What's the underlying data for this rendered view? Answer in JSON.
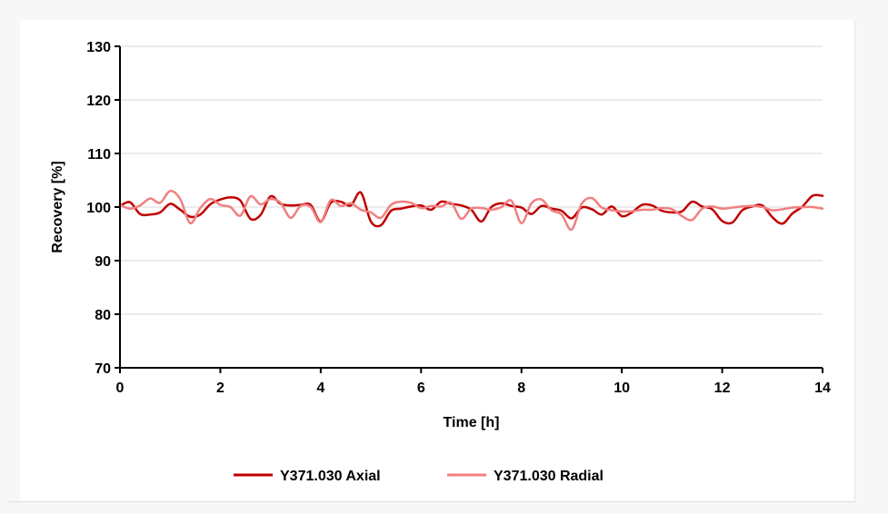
{
  "chart_data": {
    "type": "line",
    "title": "",
    "xlabel": "Time [h]",
    "ylabel": "Recovery [%]",
    "xlim": [
      0,
      14
    ],
    "ylim": [
      70,
      130
    ],
    "xticks": [
      0,
      2,
      4,
      6,
      8,
      10,
      12,
      14
    ],
    "yticks": [
      70,
      80,
      90,
      100,
      110,
      120,
      130
    ],
    "grid": "horizontal",
    "legend_position": "bottom",
    "series": [
      {
        "name": "Y371.030 Axial",
        "color": "#c00000",
        "x": [
          0,
          0.2,
          0.4,
          0.6,
          0.8,
          1.0,
          1.2,
          1.4,
          1.6,
          1.8,
          2.0,
          2.2,
          2.4,
          2.6,
          2.8,
          3.0,
          3.2,
          3.4,
          3.6,
          3.8,
          4.0,
          4.2,
          4.4,
          4.6,
          4.8,
          5.0,
          5.2,
          5.4,
          5.6,
          5.8,
          6.0,
          6.2,
          6.4,
          6.6,
          6.8,
          7.0,
          7.2,
          7.4,
          7.6,
          7.8,
          8.0,
          8.2,
          8.4,
          8.6,
          8.8,
          9.0,
          9.2,
          9.4,
          9.6,
          9.8,
          10.0,
          10.2,
          10.4,
          10.6,
          10.8,
          11.0,
          11.2,
          11.4,
          11.6,
          11.8,
          12.0,
          12.2,
          12.4,
          12.6,
          12.8,
          13.0,
          13.2,
          13.4,
          13.6,
          13.8,
          14.0
        ],
        "y": [
          100.2,
          100.9,
          98.7,
          98.6,
          99.0,
          100.6,
          99.5,
          98.2,
          98.6,
          100.5,
          101.4,
          101.8,
          101.2,
          97.8,
          98.5,
          102.0,
          100.6,
          100.3,
          100.4,
          100.4,
          97.3,
          100.8,
          101.0,
          100.3,
          102.7,
          97.3,
          96.6,
          99.3,
          99.7,
          100.1,
          100.3,
          99.5,
          101.0,
          100.6,
          100.3,
          99.5,
          97.3,
          100.0,
          100.7,
          100.2,
          99.9,
          98.7,
          100.2,
          99.7,
          99.3,
          97.9,
          99.9,
          99.6,
          98.6,
          100.1,
          98.3,
          99.0,
          100.4,
          100.3,
          99.3,
          99.0,
          99.2,
          101.0,
          100.1,
          99.6,
          97.4,
          97.1,
          99.4,
          100.1,
          100.3,
          98.1,
          96.9,
          98.8,
          100.1,
          102.1,
          102.1
        ]
      },
      {
        "name": "Y371.030 Radial",
        "color": "#f08080",
        "x": [
          0,
          0.2,
          0.4,
          0.6,
          0.8,
          1.0,
          1.2,
          1.4,
          1.6,
          1.8,
          2.0,
          2.2,
          2.4,
          2.6,
          2.8,
          3.0,
          3.2,
          3.4,
          3.6,
          3.8,
          4.0,
          4.2,
          4.4,
          4.6,
          4.8,
          5.0,
          5.2,
          5.4,
          5.6,
          5.8,
          6.0,
          6.2,
          6.4,
          6.6,
          6.8,
          7.0,
          7.2,
          7.4,
          7.6,
          7.8,
          8.0,
          8.2,
          8.4,
          8.6,
          8.8,
          9.0,
          9.2,
          9.4,
          9.6,
          9.8,
          10.0,
          10.2,
          10.4,
          10.6,
          10.8,
          11.0,
          11.2,
          11.4,
          11.6,
          11.8,
          12.0,
          12.2,
          12.4,
          12.6,
          12.8,
          13.0,
          13.2,
          13.4,
          13.6,
          13.8,
          14.0
        ],
        "y": [
          100.4,
          99.7,
          100.3,
          101.6,
          100.8,
          103.0,
          101.5,
          97.0,
          99.8,
          101.5,
          100.4,
          100.0,
          98.4,
          102.0,
          100.5,
          101.5,
          100.8,
          98.0,
          100.2,
          100.0,
          97.2,
          101.3,
          100.2,
          100.7,
          99.5,
          99.0,
          98.0,
          100.4,
          101.0,
          100.8,
          99.8,
          100.2,
          100.1,
          100.8,
          97.8,
          99.7,
          99.8,
          99.5,
          100.0,
          101.2,
          97.0,
          100.7,
          101.4,
          99.4,
          98.6,
          95.8,
          100.6,
          101.7,
          99.9,
          99.4,
          99.2,
          99.2,
          99.5,
          99.5,
          99.8,
          99.6,
          98.3,
          97.6,
          99.7,
          100.1,
          99.7,
          99.9,
          100.1,
          100.2,
          100.0,
          99.4,
          99.6,
          99.9,
          100.0,
          100.0,
          99.7
        ]
      }
    ]
  }
}
